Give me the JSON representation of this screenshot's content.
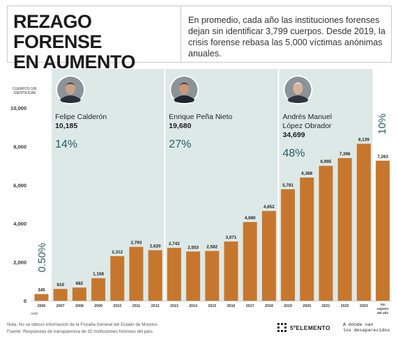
{
  "header": {
    "title_line1": "REZAGO FORENSE",
    "title_line2": "EN AUMENTO",
    "intro": "En promedio, cada año las instituciones forenses dejan sin identificar 3,799 cuerpos. Desde 2019, la crisis forense rebasa las 5,000 víctimas anónimas anuales."
  },
  "chart_data": {
    "type": "bar",
    "ylabel": "CUERPOS SIN IDENTIFICAR",
    "xlabel": "AÑO",
    "ylim": [
      0,
      10000
    ],
    "yticks": [
      "10,000",
      "8,000",
      "6,000",
      "4,000",
      "2,000",
      "0"
    ],
    "yticks_values": [
      10000,
      8000,
      6000,
      4000,
      2000,
      0
    ],
    "categories": [
      "2006",
      "2007",
      "2008",
      "2009",
      "2010",
      "2011",
      "2012",
      "2013",
      "2014",
      "2015",
      "2016",
      "2017",
      "2018",
      "2019",
      "2020",
      "2021",
      "2022",
      "2023",
      "Sin registro del año"
    ],
    "values": [
      345,
      610,
      682,
      1168,
      2312,
      2793,
      2620,
      2742,
      2553,
      2582,
      3071,
      4080,
      4652,
      5781,
      6388,
      6995,
      7396,
      8139,
      7263
    ],
    "value_labels": [
      "345",
      "610",
      "682",
      "1,168",
      "2,312",
      "2,793",
      "2,620",
      "2,742",
      "2,553",
      "2,582",
      "3,071",
      "4,080",
      "4,652",
      "5,781",
      "6,388",
      "6,995",
      "7,396",
      "8,139",
      "7,263"
    ],
    "bar_color": "#c7772d",
    "periods": [
      {
        "name": "Felipe Calderón",
        "name_line2": "",
        "total": "10,185",
        "percent": "14%",
        "start_index": 1,
        "end_index": 6
      },
      {
        "name": "Enrique Peña Nieto",
        "name_line2": "",
        "total": "19,680",
        "percent": "27%",
        "start_index": 7,
        "end_index": 12
      },
      {
        "name": "Andrés Manuel",
        "name_line2": "López Obrador",
        "total": "34,699",
        "percent": "48%",
        "start_index": 13,
        "end_index": 17
      }
    ],
    "side_labels": {
      "first": "0.50%",
      "last": "10%"
    },
    "band_color": "#dde9e7",
    "accent_color": "#275c62"
  },
  "footer": {
    "note": "Nota: No se obtuvo información de la Fiscalía General del Estado de Morelos.",
    "source": "Fuente: Respuestas de transparencia de 32 instituciones forenses del país.",
    "brand": "5ºELEMENTO",
    "brand2_line1": "A dónde van",
    "brand2_line2": "los desaparecidos"
  }
}
